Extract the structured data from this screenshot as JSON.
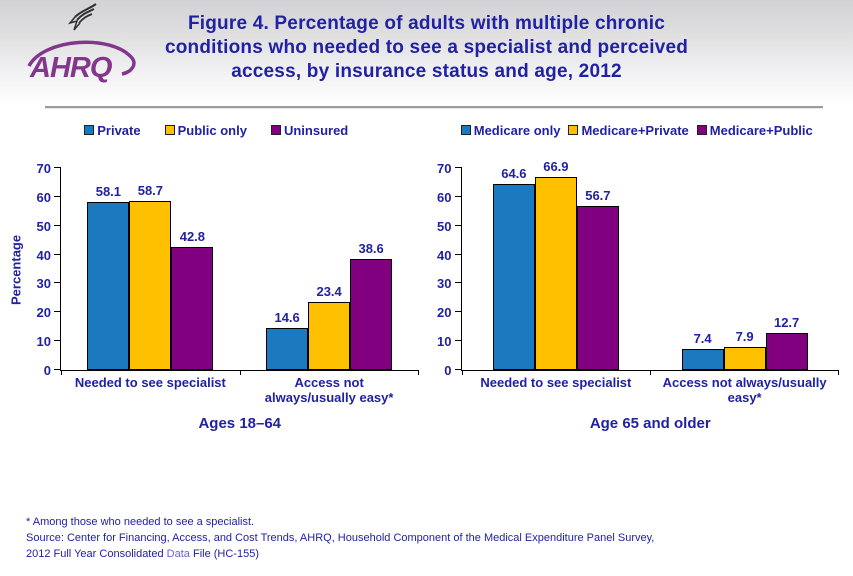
{
  "header": {
    "logo_text": "AHRQ",
    "title_lines": [
      "Figure 4. Percentage of adults with multiple chronic",
      "conditions who needed to see a specialist and perceived",
      "access, by insurance status and age, 2012"
    ]
  },
  "colors": {
    "title_text": "#2121a3",
    "logo_purple": "#82368c",
    "bar_blue": "#1b7abf",
    "bar_gold": "#ffc000",
    "bar_purple": "#800080",
    "link_blue": "#6666cc"
  },
  "chart_data": [
    {
      "type": "bar",
      "title": "Ages 18–64",
      "xlabel": "",
      "ylabel": "Percentage",
      "ylim": [
        0,
        70
      ],
      "yticks": [
        0,
        10,
        20,
        30,
        40,
        50,
        60,
        70
      ],
      "grid": false,
      "legend_position": "top",
      "categories": [
        "Needed to see specialist",
        "Access not always/usually easy*"
      ],
      "series": [
        {
          "name": "Private",
          "color": "#1b7abf",
          "values": [
            58.1,
            14.6
          ]
        },
        {
          "name": "Public only",
          "color": "#ffc000",
          "values": [
            58.7,
            23.4
          ]
        },
        {
          "name": "Uninsured",
          "color": "#800080",
          "values": [
            42.8,
            38.6
          ]
        }
      ]
    },
    {
      "type": "bar",
      "title": "Age 65 and older",
      "xlabel": "",
      "ylabel": "",
      "ylim": [
        0,
        70
      ],
      "yticks": [
        0,
        10,
        20,
        30,
        40,
        50,
        60,
        70
      ],
      "grid": false,
      "legend_position": "top",
      "categories": [
        "Needed to see specialist",
        "Access not always/usually easy*"
      ],
      "series": [
        {
          "name": "Medicare only",
          "color": "#1b7abf",
          "values": [
            64.6,
            7.4
          ]
        },
        {
          "name": "Medicare+Private",
          "color": "#ffc000",
          "values": [
            66.9,
            7.9
          ]
        },
        {
          "name": "Medicare+Public",
          "color": "#800080",
          "values": [
            56.7,
            12.7
          ]
        }
      ]
    }
  ],
  "footer": {
    "footnote": "* Among those who needed to see a specialist.",
    "source_line1": "Source: Center for Financing, Access, and Cost Trends, AHRQ, Household Component of the Medical Expenditure Panel Survey,",
    "source_line2_prefix": "2012 Full Year Consolidated ",
    "source_link": "Data",
    "source_line2_suffix": " File (HC-155)"
  }
}
